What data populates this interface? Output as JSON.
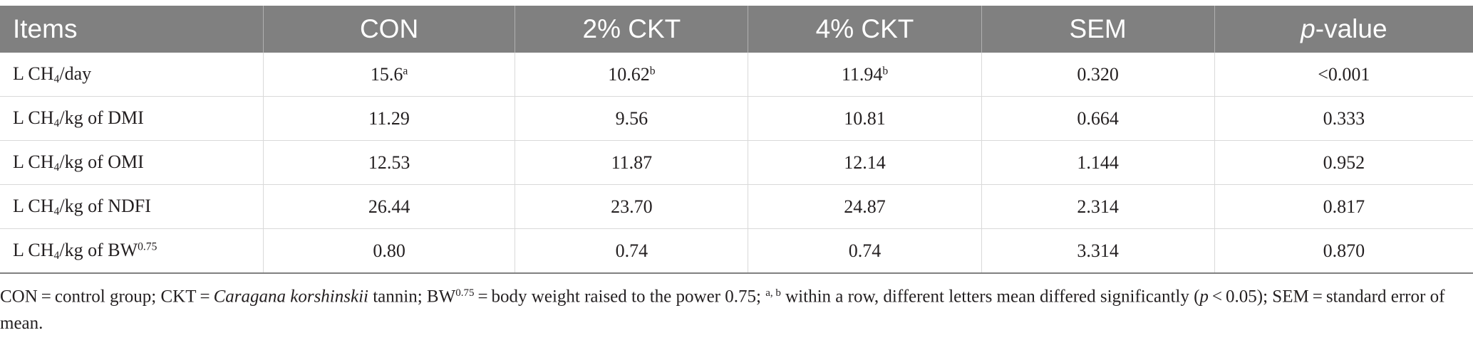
{
  "header": {
    "items": "Items",
    "con": "CON",
    "ckt2": "2% CKT",
    "ckt4": "4% CKT",
    "sem": "SEM",
    "pvalue_p": "p",
    "pvalue_rest": "-value"
  },
  "rows": [
    {
      "label_pre": "L CH",
      "label_sub": "4",
      "label_post": "/day",
      "label_sup": "",
      "con": "15.6",
      "con_sup": "a",
      "ckt2": "10.62",
      "ckt2_sup": "b",
      "ckt4": "11.94",
      "ckt4_sup": "b",
      "sem": "0.320",
      "pvalue": "<0.001"
    },
    {
      "label_pre": "L CH",
      "label_sub": "4",
      "label_post": "/kg of DMI",
      "label_sup": "",
      "con": "11.29",
      "con_sup": "",
      "ckt2": "9.56",
      "ckt2_sup": "",
      "ckt4": "10.81",
      "ckt4_sup": "",
      "sem": "0.664",
      "pvalue": "0.333"
    },
    {
      "label_pre": "L CH",
      "label_sub": "4",
      "label_post": "/kg of OMI",
      "label_sup": "",
      "con": "12.53",
      "con_sup": "",
      "ckt2": "11.87",
      "ckt2_sup": "",
      "ckt4": "12.14",
      "ckt4_sup": "",
      "sem": "1.144",
      "pvalue": "0.952"
    },
    {
      "label_pre": "L CH",
      "label_sub": "4",
      "label_post": "/kg of NDFI",
      "label_sup": "",
      "con": "26.44",
      "con_sup": "",
      "ckt2": "23.70",
      "ckt2_sup": "",
      "ckt4": "24.87",
      "ckt4_sup": "",
      "sem": "2.314",
      "pvalue": "0.817"
    },
    {
      "label_pre": "L CH",
      "label_sub": "4",
      "label_post": "/kg of BW",
      "label_sup": "0.75",
      "con": "0.80",
      "con_sup": "",
      "ckt2": "0.74",
      "ckt2_sup": "",
      "ckt4": "0.74",
      "ckt4_sup": "",
      "sem": "3.314",
      "pvalue": "0.870"
    }
  ],
  "footnote": {
    "part1": "CON = control group; CKT = ",
    "species": "Caragana korshinskii",
    "part2": " tannin; BW",
    "bw_sup": "0.75",
    "part3": " = body weight raised to the power 0.75; ",
    "ab_sup": "a, b",
    "part4": " within a row, different letters mean differed significantly (",
    "p": "p",
    "part5": " < 0.05); SEM = standard error of mean."
  }
}
